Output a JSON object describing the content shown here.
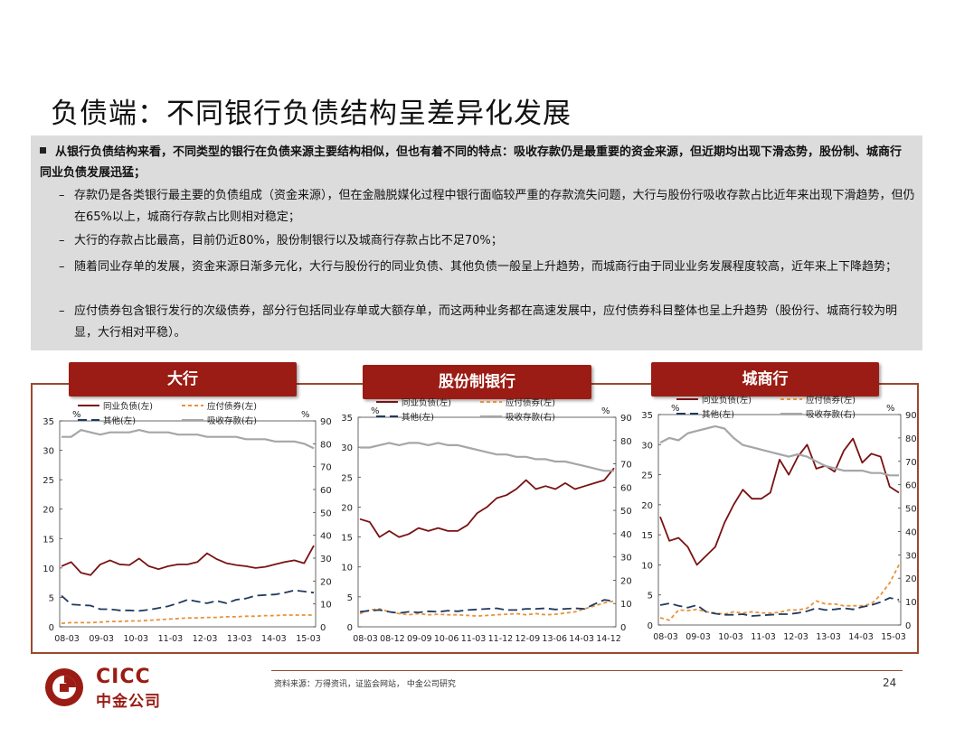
{
  "title": "负债端：不同银行负债结构呈差异化发展",
  "summary": {
    "lead": "从银行负债结构来看，不同类型的银行在负债来源主要结构相似，但也有着不同的特点：吸收存款仍是最重要的资金来源，但近期均出现下滑态势，股份制、城商行同业负债发展迅猛；",
    "bullets": [
      "存款仍是各类银行最主要的负债组成（资金来源），但在金融脱媒化过程中银行面临较严重的存款流失问题，大行与股份行吸收存款占比近年来出现下滑趋势，但仍在65%以上，城商行存款占比则相对稳定；",
      "大行的存款占比最高，目前仍近80%，股份制银行以及城商行存款占比不足70%；",
      "随着同业存单的发展，资金来源日渐多元化，大行与股份行的同业负债、其他负债一般呈上升趋势，而城商行由于同业业务发展程度较高，近年来上下降趋势；",
      "应付债券包含银行发行的次级债券，部分行包括同业存单或大额存单，而这两种业务都在高速发展中，应付债券科目整体也呈上升趋势（股份行、城商行较为明显，大行相对平稳）。"
    ]
  },
  "colors": {
    "brand": "#9b1c14",
    "interbank": "#7a1212",
    "bonds": "#e8923a",
    "other": "#1f3a5f",
    "deposits": "#a6a6a6"
  },
  "chart_data": [
    {
      "type": "line",
      "title": "大行",
      "left_unit": "%",
      "right_unit": "%",
      "left_ylim": [
        0,
        35
      ],
      "right_ylim": [
        0,
        90
      ],
      "left_ticks": [
        "0",
        "5",
        "10",
        "15",
        "20",
        "25",
        "30",
        "35"
      ],
      "right_ticks": [
        "0",
        "10",
        "20",
        "30",
        "40",
        "50",
        "60",
        "70",
        "80",
        "90"
      ],
      "x_ticks": [
        "08-03",
        "09-03",
        "10-03",
        "11-03",
        "12-03",
        "13-03",
        "14-03",
        "15-03"
      ],
      "legend": [
        "同业负债(左)",
        "应付债券(左)",
        "其他(左)",
        "吸收存款(右)"
      ],
      "series": [
        {
          "name": "同业负债(左)",
          "axis": "left",
          "color": "#7a1212",
          "dash": "",
          "values": [
            10.3,
            11.0,
            9.2,
            8.8,
            10.6,
            11.3,
            10.6,
            10.5,
            11.6,
            10.3,
            9.8,
            10.3,
            10.6,
            10.6,
            11.0,
            12.5,
            11.5,
            10.8,
            10.5,
            10.3,
            10.0,
            10.2,
            10.6,
            11.0,
            11.3,
            10.8,
            13.8
          ]
        },
        {
          "name": "应付债券(左)",
          "axis": "left",
          "color": "#e8923a",
          "dash": "4,3",
          "values": [
            0.6,
            0.7,
            0.7,
            0.7,
            0.8,
            0.9,
            0.9,
            1.0,
            1.0,
            1.1,
            1.2,
            1.3,
            1.4,
            1.5,
            1.5,
            1.6,
            1.6,
            1.7,
            1.7,
            1.8,
            1.8,
            1.9,
            1.9,
            2.0,
            2.0,
            2.0,
            2.0
          ]
        },
        {
          "name": "其他(左)",
          "axis": "left",
          "color": "#1f3a5f",
          "dash": "10,5",
          "values": [
            5.3,
            3.8,
            3.7,
            3.6,
            3.0,
            3.0,
            2.8,
            2.8,
            2.7,
            2.9,
            3.2,
            3.5,
            4.0,
            4.6,
            4.3,
            4.0,
            4.4,
            4.0,
            4.6,
            4.8,
            5.3,
            5.4,
            5.5,
            5.8,
            6.2,
            6.0,
            5.8
          ]
        },
        {
          "name": "吸收存款(右)",
          "axis": "right",
          "color": "#a6a6a6",
          "dash": "",
          "values": [
            83,
            83,
            86,
            85,
            84,
            85,
            85,
            85,
            86,
            85,
            85,
            85,
            84,
            84,
            84,
            83,
            83,
            83,
            83,
            82,
            82,
            82,
            81,
            81,
            81,
            80,
            78
          ]
        }
      ]
    },
    {
      "type": "line",
      "title": "股份制银行",
      "left_unit": "%",
      "right_unit": "%",
      "left_ylim": [
        0,
        35
      ],
      "right_ylim": [
        0,
        90
      ],
      "left_ticks": [
        "0",
        "5",
        "10",
        "15",
        "20",
        "25",
        "30",
        "35"
      ],
      "right_ticks": [
        "0",
        "10",
        "20",
        "30",
        "40",
        "50",
        "60",
        "70",
        "80",
        "90"
      ],
      "x_ticks": [
        "08-03",
        "08-12",
        "09-09",
        "10-06",
        "11-03",
        "11-12",
        "12-09",
        "13-06",
        "14-03",
        "14-12"
      ],
      "legend": [
        "同业负债(左)",
        "应付债券(左)",
        "其他(左)",
        "吸收存款(右)"
      ],
      "series": [
        {
          "name": "同业负债(左)",
          "axis": "left",
          "color": "#7a1212",
          "dash": "",
          "values": [
            18.0,
            17.5,
            15.0,
            16.0,
            15.0,
            15.5,
            16.5,
            16.0,
            16.5,
            16.0,
            16.0,
            17.0,
            19.0,
            20.0,
            21.5,
            22.0,
            23.0,
            24.5,
            23.0,
            23.5,
            23.0,
            24.0,
            23.0,
            23.5,
            24.0,
            24.5,
            26.5
          ]
        },
        {
          "name": "应付债券(左)",
          "axis": "left",
          "color": "#e8923a",
          "dash": "4,3",
          "values": [
            2.2,
            2.8,
            3.0,
            2.5,
            2.2,
            2.0,
            2.2,
            2.0,
            2.1,
            2.0,
            2.0,
            1.9,
            1.8,
            1.9,
            2.0,
            2.1,
            2.2,
            2.0,
            2.2,
            2.0,
            2.1,
            2.3,
            2.5,
            3.0,
            3.5,
            4.0,
            4.3
          ]
        },
        {
          "name": "其他(左)",
          "axis": "left",
          "color": "#1f3a5f",
          "dash": "10,5",
          "values": [
            2.5,
            2.7,
            2.8,
            2.5,
            2.3,
            2.5,
            2.4,
            2.6,
            2.5,
            2.7,
            2.6,
            2.8,
            2.9,
            3.0,
            3.1,
            2.8,
            2.8,
            3.0,
            3.0,
            3.1,
            2.9,
            3.0,
            3.1,
            3.0,
            3.8,
            4.5,
            4.3
          ]
        },
        {
          "name": "吸收存款(右)",
          "axis": "right",
          "color": "#a6a6a6",
          "dash": "",
          "values": [
            77,
            77,
            78,
            79,
            78,
            79,
            79,
            78,
            79,
            78,
            78,
            77,
            76,
            75,
            74,
            74,
            73,
            73,
            72,
            72,
            71,
            71,
            70,
            69,
            68,
            67,
            67
          ]
        }
      ]
    },
    {
      "type": "line",
      "title": "城商行",
      "left_unit": "%",
      "right_unit": "%",
      "left_ylim": [
        0,
        35
      ],
      "right_ylim": [
        0,
        90
      ],
      "left_ticks": [
        "0",
        "5",
        "10",
        "15",
        "20",
        "25",
        "30",
        "35"
      ],
      "right_ticks": [
        "0",
        "10",
        "20",
        "30",
        "40",
        "50",
        "60",
        "70",
        "80",
        "90"
      ],
      "x_ticks": [
        "08-03",
        "09-03",
        "10-03",
        "11-03",
        "12-03",
        "13-03",
        "14-03",
        "15-03"
      ],
      "legend": [
        "同业负债(左)",
        "应付债券(左)",
        "其他(左)",
        "吸收存款(右)"
      ],
      "series": [
        {
          "name": "同业负债(左)",
          "axis": "left",
          "color": "#7a1212",
          "dash": "",
          "values": [
            18.0,
            14.0,
            14.5,
            13.0,
            10.0,
            11.5,
            13.0,
            17.0,
            20.0,
            22.5,
            21.0,
            21.0,
            22.0,
            27.5,
            25.0,
            28.0,
            30.0,
            26.0,
            26.5,
            25.5,
            29.0,
            31.0,
            27.0,
            28.5,
            28.0,
            23.0,
            22.0
          ]
        },
        {
          "name": "应付债券(左)",
          "axis": "left",
          "color": "#e8923a",
          "dash": "4,3",
          "values": [
            1.2,
            0.8,
            2.5,
            2.4,
            2.6,
            2.2,
            2.0,
            1.8,
            2.2,
            2.0,
            2.2,
            2.0,
            2.0,
            2.1,
            2.5,
            2.5,
            2.8,
            4.0,
            3.5,
            3.5,
            3.2,
            3.2,
            3.2,
            3.5,
            5.0,
            7.0,
            10.0
          ]
        },
        {
          "name": "其他(左)",
          "axis": "left",
          "color": "#1f3a5f",
          "dash": "10,5",
          "values": [
            3.3,
            3.6,
            3.2,
            2.9,
            3.3,
            2.2,
            1.9,
            1.7,
            1.7,
            1.8,
            1.5,
            1.6,
            1.7,
            1.8,
            1.8,
            2.0,
            2.3,
            2.8,
            2.5,
            2.6,
            2.8,
            2.6,
            3.0,
            3.3,
            3.8,
            4.5,
            4.2
          ]
        },
        {
          "name": "吸收存款(右)",
          "axis": "right",
          "color": "#a6a6a6",
          "dash": "",
          "values": [
            78,
            80,
            79,
            82,
            83,
            84,
            85,
            84,
            80,
            77,
            76,
            75,
            74,
            73,
            72,
            73,
            72,
            70,
            68,
            67,
            66,
            66,
            66,
            65,
            65,
            64,
            64
          ]
        }
      ]
    }
  ],
  "panels": [
    {
      "label": "大行"
    },
    {
      "label": "股份制银行"
    },
    {
      "label": "城商行"
    }
  ],
  "footer": {
    "source": "资料来源：万得资讯，证监会网站， 中金公司研究",
    "page": "24"
  },
  "logo": {
    "en": "CICC",
    "cn": "中金公司"
  }
}
